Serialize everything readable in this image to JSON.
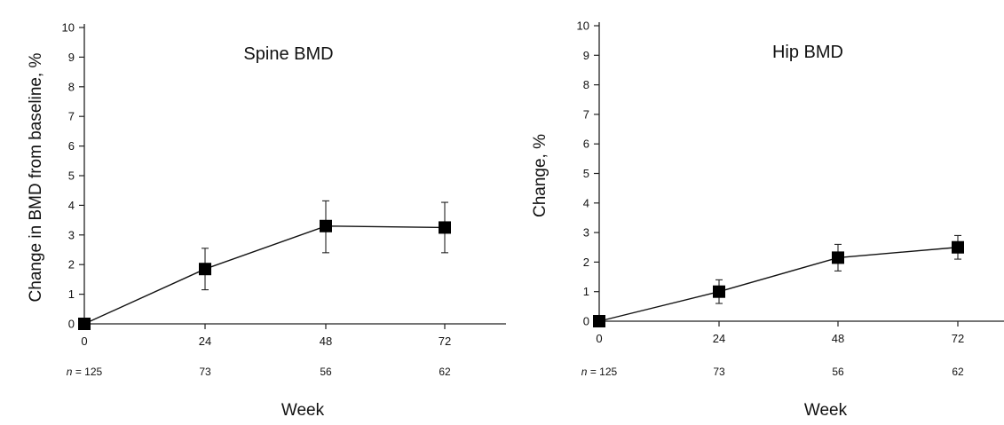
{
  "chart_data": [
    {
      "type": "line",
      "title": "Spine BMD",
      "xlabel": "Week",
      "ylabel": "Change in BMD from baseline, %",
      "x": [
        0,
        24,
        48,
        72
      ],
      "x_tick_labels": [
        "0",
        "24",
        "48",
        "72"
      ],
      "y_tick_labels": [
        "0",
        "1",
        "2",
        "3",
        "4",
        "5",
        "6",
        "7",
        "8",
        "9",
        "10"
      ],
      "ylim": [
        0,
        10
      ],
      "series": [
        {
          "values": [
            0,
            1.85,
            3.3,
            3.25
          ],
          "error_upper": [
            0,
            2.55,
            4.15,
            4.1
          ],
          "error_lower": [
            0,
            1.15,
            2.4,
            2.4
          ]
        }
      ],
      "n_prefix": "n",
      "n_equals": " = ",
      "n_values": [
        "125",
        "73",
        "56",
        "62"
      ],
      "marker_color": "#000000",
      "grid": false
    },
    {
      "type": "line",
      "title": "Hip BMD",
      "xlabel": "Week",
      "ylabel": "Change, %",
      "x": [
        0,
        24,
        48,
        72
      ],
      "x_tick_labels": [
        "0",
        "24",
        "48",
        "72"
      ],
      "y_tick_labels": [
        "0",
        "1",
        "2",
        "3",
        "4",
        "5",
        "6",
        "7",
        "8",
        "9",
        "10"
      ],
      "ylim": [
        0,
        10
      ],
      "series": [
        {
          "values": [
            0,
            1.0,
            2.15,
            2.5
          ],
          "error_upper": [
            0,
            1.4,
            2.6,
            2.9
          ],
          "error_lower": [
            0,
            0.6,
            1.7,
            2.1
          ]
        }
      ],
      "n_prefix": "n",
      "n_equals": " = ",
      "n_values": [
        "125",
        "73",
        "56",
        "62"
      ],
      "marker_color": "#000000",
      "grid": false
    }
  ]
}
